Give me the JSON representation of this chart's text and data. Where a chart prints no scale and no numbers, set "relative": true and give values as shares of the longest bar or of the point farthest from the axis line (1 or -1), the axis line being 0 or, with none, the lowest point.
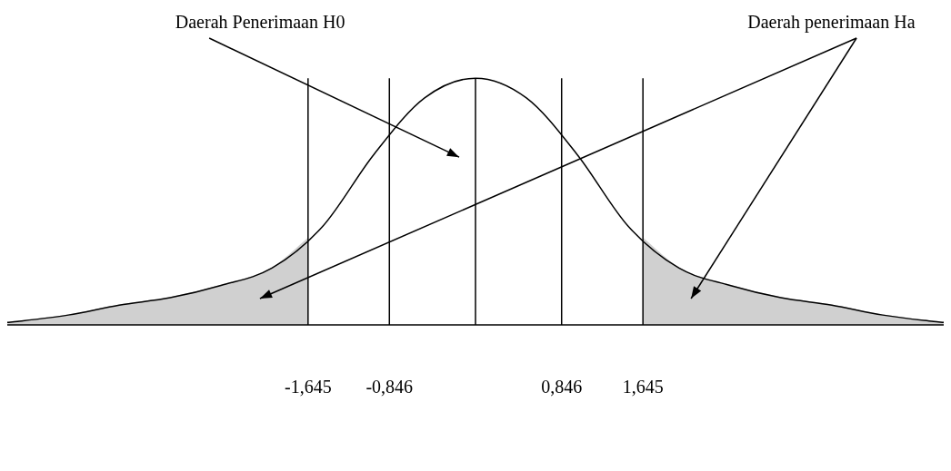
{
  "chart_data": {
    "type": "line",
    "relative": true,
    "x": [
      -4.6,
      -4.5,
      -4,
      -3.5,
      -3,
      -2.5,
      -2,
      -1.5,
      -1,
      -0.5,
      0,
      0.5,
      1,
      1.5,
      2,
      2.5,
      3,
      3.5,
      4,
      4.5,
      4.6
    ],
    "series": [
      {
        "type": "area",
        "color": "#d0d0d0",
        "x": [
          -4.6,
          -4.5,
          -4,
          -3.5,
          -3,
          -2.5,
          -2,
          -1.645
        ],
        "values": [
          0.01,
          0.014,
          0.04,
          0.08,
          0.11,
          0.16,
          0.23,
          0.35
        ]
      },
      {
        "type": "area",
        "color": "#d0d0d0",
        "x": [
          1.645,
          2,
          2.5,
          3,
          3.5,
          4,
          4.5,
          4.6
        ],
        "values": [
          0.35,
          0.23,
          0.16,
          0.11,
          0.08,
          0.04,
          0.014,
          0.01
        ]
      },
      {
        "color": "#000000",
        "values": [
          0.01,
          0.014,
          0.04,
          0.08,
          0.11,
          0.16,
          0.23,
          0.4,
          0.69,
          0.92,
          1,
          0.92,
          0.69,
          0.4,
          0.23,
          0.16,
          0.11,
          0.08,
          0.04,
          0.014,
          0.01
        ]
      }
    ],
    "xlim": [
      -4.6,
      4.6
    ],
    "xticks": [
      {
        "value": -1.645,
        "label": "-1,645"
      },
      {
        "value": -0.846,
        "label": "-0,846"
      },
      {
        "value": 0.846,
        "label": "0,846"
      },
      {
        "value": 1.645,
        "label": "1,645"
      }
    ],
    "ref_lines": [
      {
        "axis": "x",
        "value": -1.645
      },
      {
        "axis": "x",
        "value": -0.846
      },
      {
        "axis": "x",
        "value": 0
      },
      {
        "axis": "x",
        "value": 0.846
      },
      {
        "axis": "x",
        "value": 1.645
      }
    ],
    "annotations": [
      "Daerah Penerimaan H0",
      "Daerah penerimaan Ha"
    ],
    "grid": false,
    "legend": false,
    "marker": "none",
    "line_style": "solid"
  }
}
